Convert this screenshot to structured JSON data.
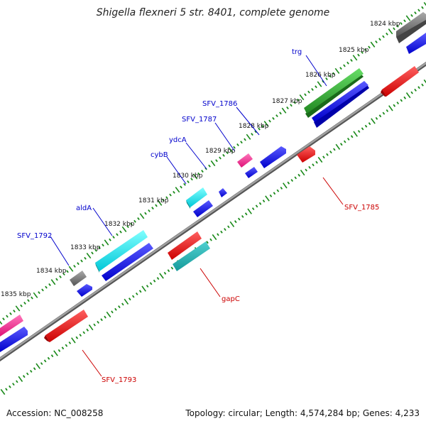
{
  "title": "Shigella flexneri 5 str. 8401, complete genome",
  "footer": {
    "accession": "Accession: NC_008258",
    "topology": "Topology: circular; Length: 4,574,284 bp; Genes: 4,233"
  },
  "colors": {
    "backbone": "#808080",
    "tick": "#1a8a1a",
    "forward_label": "#0000cc",
    "reverse_label": "#cc0000",
    "blue": "#0000ee",
    "red": "#ee0000",
    "cyan": "#00e0e0",
    "teal": "#20b2b2",
    "green": "#33aa33",
    "gray": "#777777",
    "magenta": "#ee3399"
  },
  "ticks": [
    {
      "label": "1824 kbp"
    },
    {
      "label": "1825 kbp"
    },
    {
      "label": "1826 kbp"
    },
    {
      "label": "1827 kbp"
    },
    {
      "label": "1828 kbp"
    },
    {
      "label": "1829 kbp"
    },
    {
      "label": "1830 kbp"
    },
    {
      "label": "1831 kbp"
    },
    {
      "label": "1832 kbp"
    },
    {
      "label": "1833 kbp"
    },
    {
      "label": "1834 kbp"
    },
    {
      "label": "1835 kbp"
    }
  ],
  "gene_labels": [
    {
      "text": "trg",
      "strand": "forward"
    },
    {
      "text": "SFV_1786",
      "strand": "forward"
    },
    {
      "text": "SFV_1787",
      "strand": "forward"
    },
    {
      "text": "ydcA",
      "strand": "forward"
    },
    {
      "text": "cybB",
      "strand": "forward"
    },
    {
      "text": "aldA",
      "strand": "forward"
    },
    {
      "text": "SFV_1792",
      "strand": "forward"
    },
    {
      "text": "SFV_1785",
      "strand": "reverse"
    },
    {
      "text": "gapC",
      "strand": "reverse"
    },
    {
      "text": "SFV_1793",
      "strand": "reverse"
    }
  ]
}
